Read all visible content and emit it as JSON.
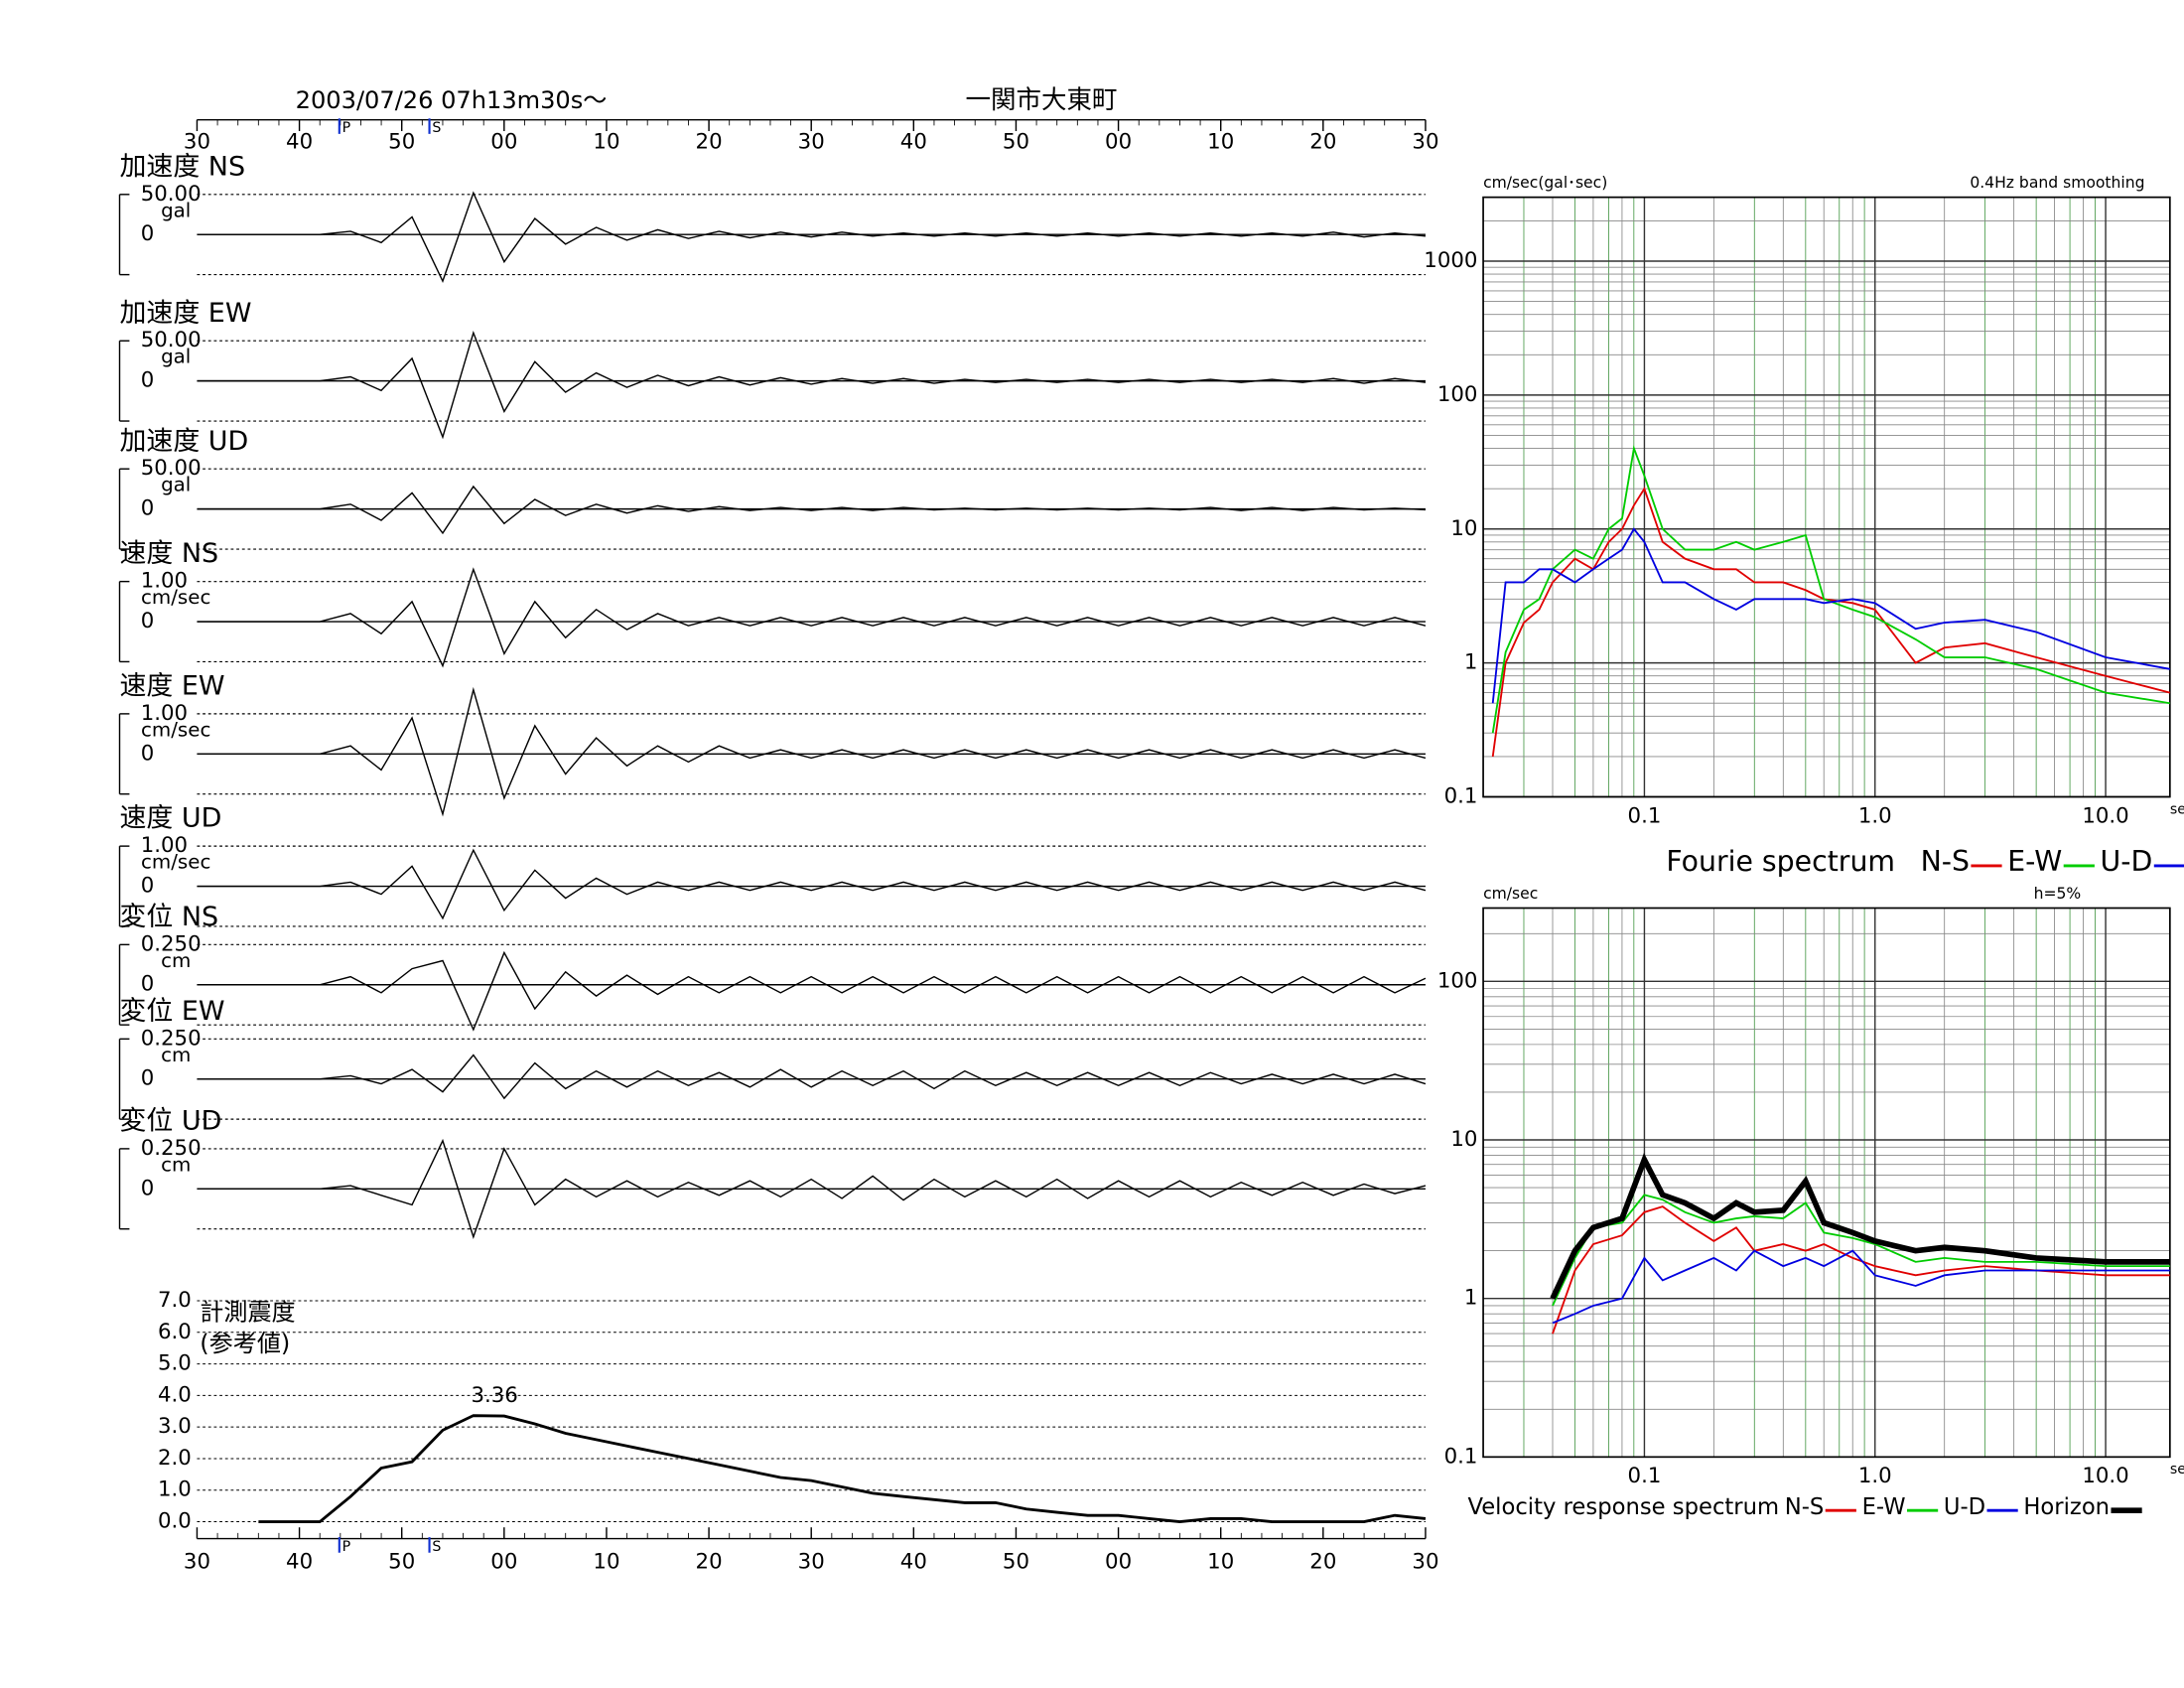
{
  "chart_data": [
    {
      "type": "waveform",
      "title": "2003/07/26  07h13m30s〜",
      "subtitle": "一関市大東町",
      "xlim": [
        0,
        120
      ],
      "xticks": [
        {
          "value": 0,
          "label": "30"
        },
        {
          "value": 10,
          "label": "40"
        },
        {
          "value": 20,
          "label": "50"
        },
        {
          "value": 30,
          "label": "00"
        },
        {
          "value": 40,
          "label": "10"
        },
        {
          "value": 50,
          "label": "20"
        },
        {
          "value": 60,
          "label": "30"
        },
        {
          "value": 70,
          "label": "40"
        },
        {
          "value": 80,
          "label": "50"
        },
        {
          "value": 90,
          "label": "00"
        },
        {
          "value": 100,
          "label": "10"
        },
        {
          "value": 110,
          "label": "20"
        },
        {
          "value": 120,
          "label": "30"
        }
      ],
      "phases": [
        {
          "value": 13.9,
          "label": "P"
        },
        {
          "value": 22.7,
          "label": "S"
        }
      ],
      "x": [
        0,
        3,
        6,
        9,
        12,
        15,
        18,
        21,
        24,
        27,
        30,
        33,
        36,
        39,
        42,
        45,
        48,
        51,
        54,
        57,
        60,
        63,
        66,
        69,
        72,
        75,
        78,
        81,
        84,
        87,
        90,
        93,
        96,
        99,
        102,
        105,
        108,
        111,
        114,
        117,
        120
      ],
      "panels": [
        {
          "name": "加速度 NS",
          "unit": "gal",
          "ylim": [
            -50,
            50
          ],
          "yticks": [
            0,
            {
              "value": 50,
              "label": "50.00"
            }
          ],
          "values": [
            0,
            0,
            0,
            0,
            0,
            4,
            -10,
            22,
            -58,
            52,
            -34,
            20,
            -12,
            9,
            -7,
            6,
            -5,
            4,
            -4,
            3,
            -3,
            3,
            -2,
            2,
            -2,
            2,
            -2,
            2,
            -2,
            2,
            -2,
            2,
            -2,
            2,
            -2,
            2,
            -2,
            3,
            -3,
            2,
            -2
          ]
        },
        {
          "name": "加速度 EW",
          "unit": "gal",
          "ylim": [
            -50,
            50
          ],
          "yticks": [
            0,
            {
              "value": 50,
              "label": "50.00"
            }
          ],
          "values": [
            0,
            0,
            0,
            0,
            0,
            5,
            -12,
            28,
            -70,
            60,
            -38,
            24,
            -14,
            10,
            -8,
            7,
            -6,
            5,
            -5,
            4,
            -4,
            3,
            -3,
            3,
            -3,
            2,
            -2,
            2,
            -2,
            2,
            -2,
            2,
            -2,
            2,
            -2,
            2,
            -2,
            3,
            -3,
            3,
            -2
          ]
        },
        {
          "name": "加速度 UD",
          "unit": "gal",
          "ylim": [
            -50,
            50
          ],
          "yticks": [
            0,
            {
              "value": 50,
              "label": "50.00"
            }
          ],
          "values": [
            0,
            0,
            0,
            0,
            0,
            6,
            -14,
            20,
            -30,
            28,
            -18,
            12,
            -8,
            6,
            -5,
            4,
            -3,
            3,
            -2,
            2,
            -2,
            2,
            -2,
            2,
            -1,
            1,
            -1,
            1,
            -1,
            1,
            -1,
            1,
            -1,
            2,
            -2,
            2,
            -2,
            2,
            -1,
            1,
            -1
          ]
        },
        {
          "name": "速度 NS",
          "unit": "cm/sec",
          "ylim": [
            -1,
            1
          ],
          "yticks": [
            0,
            {
              "value": 1,
              "label": "1.00"
            }
          ],
          "values": [
            0,
            0,
            0,
            0,
            0,
            0.2,
            -0.3,
            0.5,
            -1.1,
            1.3,
            -0.8,
            0.5,
            -0.4,
            0.3,
            -0.2,
            0.2,
            -0.1,
            0.1,
            -0.1,
            0.1,
            -0.1,
            0.1,
            -0.1,
            0.1,
            -0.1,
            0.1,
            -0.1,
            0.1,
            -0.1,
            0.1,
            -0.1,
            0.1,
            -0.1,
            0.1,
            -0.1,
            0.1,
            -0.1,
            0.1,
            -0.1,
            0.1,
            -0.1
          ]
        },
        {
          "name": "速度 EW",
          "unit": "cm/sec",
          "ylim": [
            -1,
            1
          ],
          "yticks": [
            0,
            {
              "value": 1,
              "label": "1.00"
            }
          ],
          "values": [
            0,
            0,
            0,
            0,
            0,
            0.2,
            -0.4,
            0.9,
            -1.5,
            1.6,
            -1.1,
            0.7,
            -0.5,
            0.4,
            -0.3,
            0.2,
            -0.2,
            0.2,
            -0.1,
            0.1,
            -0.1,
            0.1,
            -0.1,
            0.1,
            -0.1,
            0.1,
            -0.1,
            0.1,
            -0.1,
            0.1,
            -0.1,
            0.1,
            -0.1,
            0.1,
            -0.1,
            0.1,
            -0.1,
            0.1,
            -0.1,
            0.1,
            -0.1
          ]
        },
        {
          "name": "速度 UD",
          "unit": "cm/sec",
          "ylim": [
            -1,
            1
          ],
          "yticks": [
            0,
            {
              "value": 1,
              "label": "1.00"
            }
          ],
          "values": [
            0,
            0,
            0,
            0,
            0,
            0.1,
            -0.2,
            0.5,
            -0.8,
            0.9,
            -0.6,
            0.4,
            -0.3,
            0.2,
            -0.2,
            0.1,
            -0.1,
            0.1,
            -0.1,
            0.1,
            -0.1,
            0.1,
            -0.1,
            0.1,
            -0.1,
            0.1,
            -0.1,
            0.1,
            -0.1,
            0.1,
            -0.1,
            0.1,
            -0.1,
            0.1,
            -0.1,
            0.1,
            -0.1,
            0.1,
            -0.1,
            0.1,
            -0.1
          ]
        },
        {
          "name": "変位 NS",
          "unit": "cm",
          "ylim": [
            -0.25,
            0.25
          ],
          "yticks": [
            0,
            {
              "value": 0.25,
              "label": "0.250"
            }
          ],
          "values": [
            0,
            0,
            0,
            0,
            0,
            0.05,
            -0.05,
            0.1,
            0.15,
            -0.28,
            0.2,
            -0.15,
            0.08,
            -0.07,
            0.06,
            -0.06,
            0.05,
            -0.05,
            0.05,
            -0.05,
            0.05,
            -0.05,
            0.05,
            -0.05,
            0.05,
            -0.05,
            0.05,
            -0.05,
            0.05,
            -0.05,
            0.05,
            -0.05,
            0.05,
            -0.05,
            0.05,
            -0.05,
            0.05,
            -0.05,
            0.05,
            -0.05,
            0.04
          ]
        },
        {
          "name": "変位 EW",
          "unit": "cm",
          "ylim": [
            -0.25,
            0.25
          ],
          "yticks": [
            0,
            {
              "value": 0.25,
              "label": "0.250"
            }
          ],
          "values": [
            0,
            0,
            0,
            0,
            0,
            0.02,
            -0.03,
            0.06,
            -0.08,
            0.15,
            -0.12,
            0.1,
            -0.06,
            0.05,
            -0.05,
            0.05,
            -0.04,
            0.04,
            -0.05,
            0.06,
            -0.05,
            0.05,
            -0.04,
            0.05,
            -0.06,
            0.05,
            -0.04,
            0.04,
            -0.04,
            0.04,
            -0.04,
            0.04,
            -0.04,
            0.04,
            -0.03,
            0.03,
            -0.03,
            0.03,
            -0.03,
            0.03,
            -0.03
          ]
        },
        {
          "name": "変位 UD",
          "unit": "cm",
          "ylim": [
            -0.25,
            0.25
          ],
          "yticks": [
            0,
            {
              "value": 0.25,
              "label": "0.250"
            }
          ],
          "values": [
            0,
            0,
            0,
            0,
            0,
            0.02,
            -0.04,
            -0.1,
            0.3,
            -0.3,
            0.25,
            -0.1,
            0.06,
            -0.05,
            0.05,
            -0.05,
            0.04,
            -0.04,
            0.05,
            -0.05,
            0.06,
            -0.06,
            0.08,
            -0.07,
            0.06,
            -0.05,
            0.05,
            -0.05,
            0.06,
            -0.06,
            0.05,
            -0.05,
            0.05,
            -0.05,
            0.04,
            -0.04,
            0.04,
            -0.04,
            0.03,
            -0.03,
            0.02
          ]
        }
      ]
    },
    {
      "type": "line",
      "title": "計測震度",
      "subtitle": "(参考値)",
      "xlim": [
        0,
        120
      ],
      "xticks": [
        {
          "value": 0,
          "label": "30"
        },
        {
          "value": 10,
          "label": "40"
        },
        {
          "value": 20,
          "label": "50"
        },
        {
          "value": 30,
          "label": "00"
        },
        {
          "value": 40,
          "label": "10"
        },
        {
          "value": 50,
          "label": "20"
        },
        {
          "value": 60,
          "label": "30"
        },
        {
          "value": 70,
          "label": "40"
        },
        {
          "value": 80,
          "label": "50"
        },
        {
          "value": 90,
          "label": "00"
        },
        {
          "value": 100,
          "label": "10"
        },
        {
          "value": 110,
          "label": "20"
        },
        {
          "value": 120,
          "label": "30"
        }
      ],
      "phases": [
        {
          "value": 13.9,
          "label": "P"
        },
        {
          "value": 22.7,
          "label": "S"
        }
      ],
      "ylim": [
        0,
        7
      ],
      "yticks": [
        {
          "value": 0,
          "label": "0.0"
        },
        {
          "value": 1,
          "label": "1.0"
        },
        {
          "value": 2,
          "label": "2.0"
        },
        {
          "value": 3,
          "label": "3.0"
        },
        {
          "value": 4,
          "label": "4.0"
        },
        {
          "value": 5,
          "label": "5.0"
        },
        {
          "value": 6,
          "label": "6.0"
        },
        {
          "value": 7,
          "label": "7.0"
        }
      ],
      "x": [
        0,
        3,
        6,
        9,
        12,
        15,
        18,
        21,
        24,
        27,
        30,
        33,
        36,
        39,
        42,
        45,
        48,
        51,
        54,
        57,
        60,
        63,
        66,
        69,
        72,
        75,
        78,
        81,
        84,
        87,
        90,
        93,
        96,
        99,
        102,
        105,
        108,
        111,
        114,
        117,
        120
      ],
      "values": [
        null,
        null,
        0,
        0,
        0,
        0.8,
        1.7,
        1.9,
        2.9,
        3.36,
        3.35,
        3.1,
        2.8,
        2.6,
        2.4,
        2.2,
        2.0,
        1.8,
        1.6,
        1.4,
        1.3,
        1.1,
        0.9,
        0.8,
        0.7,
        0.6,
        0.6,
        0.4,
        0.3,
        0.2,
        0.2,
        0.1,
        0,
        0.1,
        0.1,
        0,
        0,
        0,
        0,
        0.2,
        0.1
      ],
      "value_labels": [
        null,
        null,
        null,
        null,
        null,
        null,
        null,
        null,
        null,
        "3.36",
        null,
        null,
        null,
        null,
        null,
        null,
        null,
        null,
        null,
        null,
        null,
        null,
        null,
        null,
        null,
        null,
        null,
        null,
        null,
        null,
        null,
        null,
        null,
        null,
        null,
        null,
        null,
        null,
        null,
        null,
        null
      ],
      "color": "#000000"
    },
    {
      "type": "loglog",
      "title": "Fourie spectrum",
      "ylabel": "cm/sec(gal･sec)",
      "note": "0.4Hz band smoothing",
      "xlabel": "sec",
      "xlim": [
        0.02,
        19
      ],
      "ylim": [
        0.1,
        3000
      ],
      "xticks": [
        0.1,
        {
          "value": 1,
          "label": "1.0"
        },
        {
          "value": 10,
          "label": "10.0"
        }
      ],
      "yticks": [
        0.1,
        1,
        10,
        100,
        1000
      ],
      "grid": true,
      "x": [
        0.022,
        0.025,
        0.03,
        0.035,
        0.04,
        0.05,
        0.06,
        0.07,
        0.08,
        0.09,
        0.1,
        0.12,
        0.15,
        0.2,
        0.25,
        0.3,
        0.4,
        0.5,
        0.6,
        0.8,
        1.0,
        1.5,
        2,
        3,
        5,
        10,
        19
      ],
      "series": [
        {
          "name": "N-S",
          "color": "#e00000",
          "values": [
            0.2,
            1.0,
            2,
            2.5,
            4,
            6,
            5,
            8,
            10,
            15,
            20,
            8,
            6,
            5,
            5,
            4,
            4,
            3.5,
            3,
            2.8,
            2.5,
            1.0,
            1.3,
            1.4,
            1.1,
            0.8,
            0.6
          ]
        },
        {
          "name": "E-W",
          "color": "#00cc00",
          "values": [
            0.3,
            1.2,
            2.5,
            3,
            5,
            7,
            6,
            10,
            12,
            40,
            25,
            10,
            7,
            7,
            8,
            7,
            8,
            9,
            3,
            2.5,
            2.2,
            1.5,
            1.1,
            1.1,
            0.9,
            0.6,
            0.5
          ]
        },
        {
          "name": "U-D",
          "color": "#0000e0",
          "values": [
            0.5,
            4,
            4,
            5,
            5,
            4,
            5,
            6,
            7,
            10,
            8,
            4,
            4,
            3,
            2.5,
            3,
            3,
            3,
            2.8,
            3,
            2.8,
            1.8,
            2,
            2.1,
            1.7,
            1.1,
            0.9
          ]
        }
      ]
    },
    {
      "type": "loglog",
      "title": "Velocity response spectrum",
      "ylabel": "cm/sec",
      "note": "h=5%",
      "xlabel": "sec",
      "xlim": [
        0.02,
        19
      ],
      "ylim": [
        0.1,
        290
      ],
      "xticks": [
        0.1,
        {
          "value": 1,
          "label": "1.0"
        },
        {
          "value": 10,
          "label": "10.0"
        }
      ],
      "yticks": [
        0.1,
        1,
        10,
        100
      ],
      "grid": true,
      "x": [
        0.04,
        0.05,
        0.06,
        0.08,
        0.1,
        0.12,
        0.15,
        0.2,
        0.25,
        0.3,
        0.4,
        0.5,
        0.6,
        0.8,
        1.0,
        1.5,
        2,
        3,
        5,
        10,
        19
      ],
      "series": [
        {
          "name": "N-S",
          "color": "#e00000",
          "values": [
            0.6,
            1.5,
            2.2,
            2.5,
            3.5,
            3.8,
            3.0,
            2.3,
            2.8,
            2.0,
            2.2,
            2.0,
            2.2,
            1.8,
            1.6,
            1.4,
            1.5,
            1.6,
            1.5,
            1.4,
            1.4
          ]
        },
        {
          "name": "E-W",
          "color": "#00cc00",
          "values": [
            0.9,
            1.8,
            2.8,
            3.0,
            4.5,
            4.2,
            3.5,
            3.0,
            3.2,
            3.3,
            3.2,
            4.0,
            2.6,
            2.4,
            2.2,
            1.7,
            1.8,
            1.7,
            1.7,
            1.6,
            1.6
          ]
        },
        {
          "name": "U-D",
          "color": "#0000e0",
          "values": [
            0.7,
            0.8,
            0.9,
            1.0,
            1.8,
            1.3,
            1.5,
            1.8,
            1.5,
            2.0,
            1.6,
            1.8,
            1.6,
            2.0,
            1.4,
            1.2,
            1.4,
            1.5,
            1.5,
            1.5,
            1.5
          ]
        },
        {
          "name": "Horizon",
          "color": "#000000",
          "values": [
            1.0,
            2.0,
            2.8,
            3.2,
            7.5,
            4.5,
            4.0,
            3.2,
            4.0,
            3.5,
            3.6,
            5.5,
            3.0,
            2.6,
            2.3,
            2.0,
            2.1,
            2.0,
            1.8,
            1.7,
            1.7
          ]
        }
      ]
    }
  ]
}
